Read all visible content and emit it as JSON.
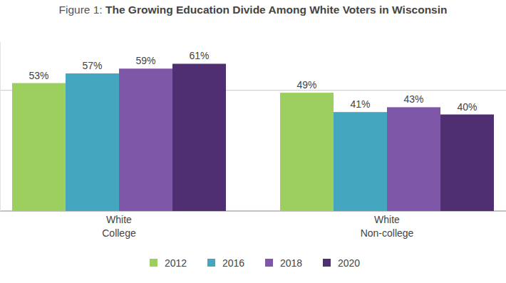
{
  "chart_data": {
    "type": "bar",
    "title": "Figure 1: The Growing Education Divide Among White Voters in Wisconsin",
    "categories": [
      "White\nCollege",
      "White\nNon-college"
    ],
    "series": [
      {
        "name": "2012",
        "color": "#9dcf5f",
        "values": [
          53,
          49
        ],
        "value_labels": [
          "53%",
          "49%"
        ]
      },
      {
        "name": "2016",
        "color": "#45a6c0",
        "values": [
          57,
          41
        ],
        "value_labels": [
          "57%",
          "41%"
        ]
      },
      {
        "name": "2018",
        "color": "#7e57a8",
        "values": [
          59,
          43
        ],
        "value_labels": [
          "59%",
          "43%"
        ]
      },
      {
        "name": "2020",
        "color": "#4f2f72",
        "values": [
          61,
          40
        ],
        "value_labels": [
          "61%",
          "40%"
        ]
      }
    ],
    "ylim": [
      0,
      70
    ],
    "yticks": [
      0,
      50
    ],
    "grid": true,
    "tick_labels": false,
    "data_labels": true,
    "legend": "bottom"
  }
}
